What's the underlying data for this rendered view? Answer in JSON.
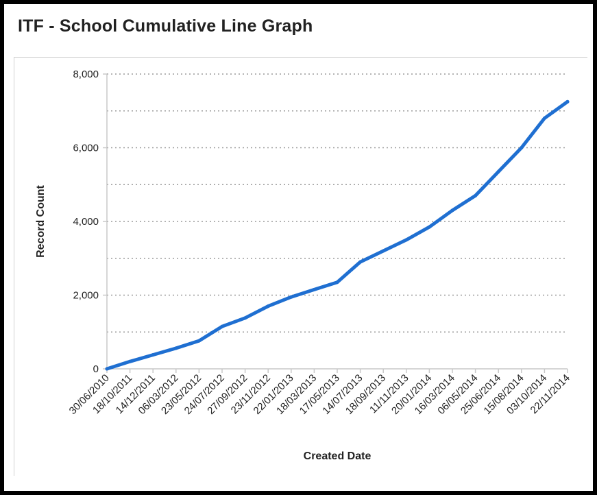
{
  "title": "ITF - School Cumulative Line Graph",
  "chart_data": {
    "type": "line",
    "title": "ITF - School Cumulative Line Graph",
    "xlabel": "Created Date",
    "ylabel": "Record Count",
    "ylim": [
      0,
      8000
    ],
    "y_ticks": [
      "0",
      "2,000",
      "4,000",
      "6,000",
      "8,000"
    ],
    "x_tick_labels": [
      "30/06/2010",
      "18/10/2011",
      "14/12/2011",
      "06/03/2012",
      "23/05/2012",
      "24/07/2012",
      "27/09/2012",
      "23/11/2012",
      "22/01/2013",
      "18/03/2013",
      "17/05/2013",
      "14/07/2013",
      "18/09/2013",
      "11/11/2013",
      "20/01/2014",
      "16/03/2014",
      "06/05/2014",
      "25/06/2014",
      "15/08/2014",
      "03/10/2014",
      "22/11/2014"
    ],
    "grid": true,
    "line_color": "#1f6fd1",
    "series": [
      {
        "x": [
          "30/06/2010",
          "18/10/2011",
          "14/12/2011",
          "06/03/2012",
          "23/05/2012",
          "24/07/2012",
          "27/09/2012",
          "23/11/2012",
          "22/01/2013",
          "18/03/2013",
          "17/05/2013",
          "14/07/2013",
          "18/09/2013",
          "11/11/2013",
          "20/01/2014",
          "16/03/2014",
          "06/05/2014",
          "25/06/2014",
          "15/08/2014",
          "03/10/2014",
          "22/11/2014"
        ],
        "values": [
          0,
          200,
          380,
          560,
          760,
          1150,
          1380,
          1700,
          1950,
          2150,
          2350,
          2900,
          3200,
          3500,
          3850,
          4300,
          4700,
          5350,
          6000,
          6800,
          7250
        ]
      }
    ]
  }
}
